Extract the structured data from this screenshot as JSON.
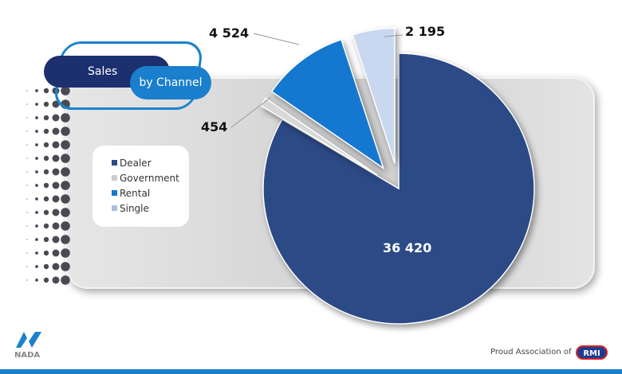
{
  "title": {
    "line1": "Sales",
    "line2": "by Channel"
  },
  "chart_data": {
    "type": "pie",
    "categories": [
      "Dealer",
      "Government",
      "Rental",
      "Single"
    ],
    "values": [
      36420,
      454,
      4524,
      2195
    ],
    "data_labels": [
      "36 420",
      "454",
      "4 524",
      "2 195"
    ],
    "colors": [
      "#2c4a86",
      "#d8d8d8",
      "#1477d0",
      "#c8d8f0"
    ],
    "exploded": [
      "Government",
      "Rental",
      "Single"
    ],
    "legend_placement": "left"
  },
  "footer": {
    "brand": "NADA",
    "association": "Proud Association of",
    "partner": "RMI"
  }
}
